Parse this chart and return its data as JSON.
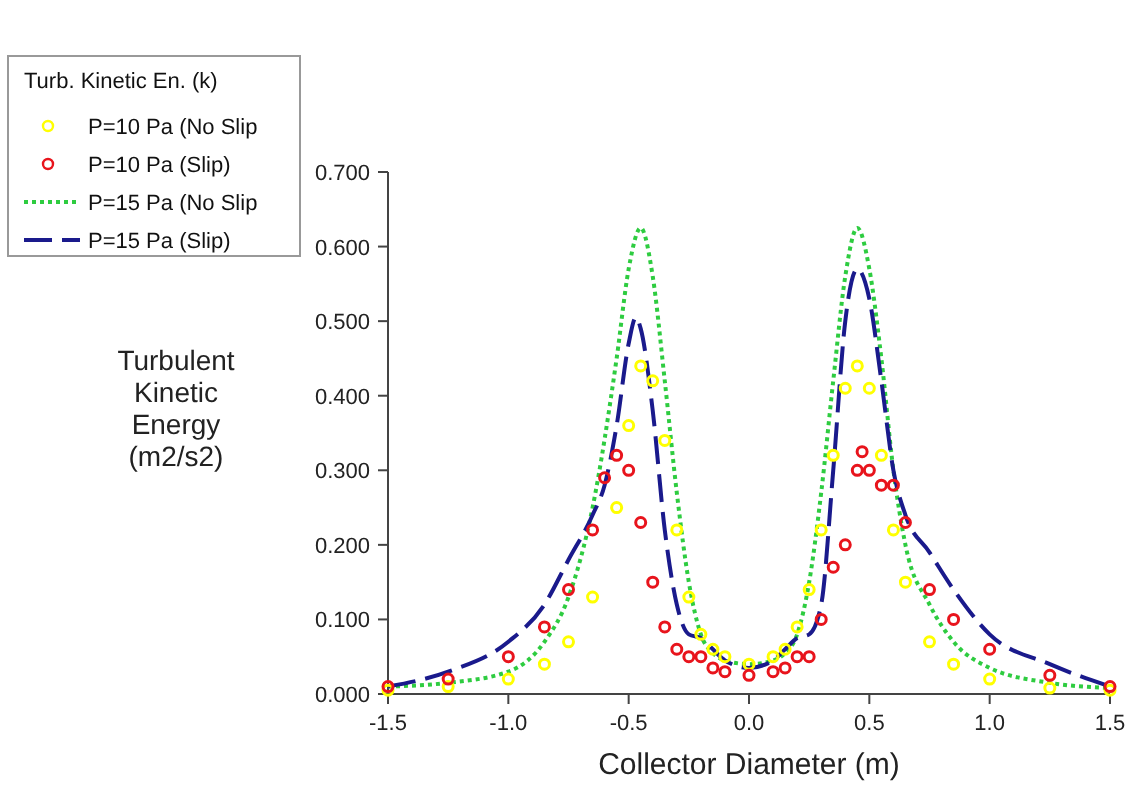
{
  "chart_data": {
    "type": "line",
    "xlabel": "Collector Diameter (m)",
    "ylabel": "Turbulent\nKinetic\nEnergy\n(m2/s2)",
    "legend_title": "Turb. Kinetic En. (k)",
    "legend": "top left",
    "xlim": [
      -1.5,
      1.5
    ],
    "xticks": [
      {
        "value": -1.5,
        "label": "-1.5"
      },
      {
        "value": -1,
        "label": "-1.0"
      },
      {
        "value": -0.5,
        "label": "-0.5"
      },
      {
        "value": 0,
        "label": "0.0"
      },
      {
        "value": 0.5,
        "label": "0.5"
      },
      {
        "value": 1,
        "label": "1.0"
      },
      {
        "value": 1.5,
        "label": "1.5"
      }
    ],
    "ylim": [
      0,
      0.7
    ],
    "yticks": [
      {
        "value": 0,
        "label": "0.000"
      },
      {
        "value": 0.1,
        "label": "0.100"
      },
      {
        "value": 0.2,
        "label": "0.200"
      },
      {
        "value": 0.3,
        "label": "0.300"
      },
      {
        "value": 0.4,
        "label": "0.400"
      },
      {
        "value": 0.5,
        "label": "0.500"
      },
      {
        "value": 0.6,
        "label": "0.600"
      },
      {
        "value": 0.7,
        "label": "0.700"
      }
    ],
    "series": [
      {
        "name": "P=10 Pa (No Slip",
        "type": "scatter",
        "marker": "circle",
        "color": "#ffff00",
        "x": [
          -1.5,
          -1.25,
          -1,
          -0.85,
          -0.75,
          -0.65,
          -0.55,
          -0.5,
          -0.45,
          -0.4,
          -0.35,
          -0.3,
          -0.25,
          -0.2,
          -0.15,
          -0.1,
          0,
          0.1,
          0.15,
          0.2,
          0.25,
          0.3,
          0.35,
          0.4,
          0.45,
          0.5,
          0.55,
          0.6,
          0.65,
          0.75,
          0.85,
          1,
          1.25,
          1.5
        ],
        "values": [
          0.005,
          0.01,
          0.02,
          0.04,
          0.07,
          0.13,
          0.25,
          0.36,
          0.44,
          0.42,
          0.34,
          0.22,
          0.13,
          0.08,
          0.06,
          0.05,
          0.04,
          0.05,
          0.06,
          0.09,
          0.14,
          0.22,
          0.32,
          0.41,
          0.44,
          0.41,
          0.32,
          0.22,
          0.15,
          0.07,
          0.04,
          0.02,
          0.008,
          0.005
        ]
      },
      {
        "name": "P=10 Pa (Slip)",
        "type": "scatter",
        "marker": "circle",
        "color": "#e8141c",
        "x": [
          -1.5,
          -1.25,
          -1,
          -0.85,
          -0.75,
          -0.65,
          -0.6,
          -0.55,
          -0.5,
          -0.45,
          -0.4,
          -0.35,
          -0.3,
          -0.25,
          -0.2,
          -0.15,
          -0.1,
          0,
          0.1,
          0.15,
          0.2,
          0.25,
          0.3,
          0.35,
          0.4,
          0.45,
          0.47,
          0.5,
          0.55,
          0.6,
          0.65,
          0.75,
          0.85,
          1,
          1.25,
          1.5
        ],
        "values": [
          0.01,
          0.02,
          0.05,
          0.09,
          0.14,
          0.22,
          0.29,
          0.32,
          0.3,
          0.23,
          0.15,
          0.09,
          0.06,
          0.05,
          0.05,
          0.035,
          0.03,
          0.025,
          0.03,
          0.035,
          0.05,
          0.05,
          0.1,
          0.17,
          0.2,
          0.3,
          0.325,
          0.3,
          0.28,
          0.28,
          0.23,
          0.14,
          0.1,
          0.06,
          0.025,
          0.01
        ]
      },
      {
        "name": "P=15 Pa (No Slip",
        "type": "line",
        "line_style": "dotted",
        "color": "#2ecc40",
        "x": [
          -1.5,
          -1.25,
          -1,
          -0.85,
          -0.75,
          -0.65,
          -0.55,
          -0.5,
          -0.45,
          -0.4,
          -0.35,
          -0.3,
          -0.25,
          -0.2,
          -0.15,
          -0.1,
          0,
          0.1,
          0.15,
          0.2,
          0.25,
          0.3,
          0.35,
          0.4,
          0.45,
          0.5,
          0.55,
          0.6,
          0.65,
          0.75,
          0.85,
          1,
          1.25,
          1.5
        ],
        "values": [
          0.01,
          0.015,
          0.03,
          0.07,
          0.13,
          0.25,
          0.45,
          0.57,
          0.625,
          0.56,
          0.42,
          0.27,
          0.15,
          0.08,
          0.055,
          0.045,
          0.04,
          0.045,
          0.055,
          0.08,
          0.15,
          0.27,
          0.42,
          0.56,
          0.625,
          0.57,
          0.45,
          0.3,
          0.2,
          0.12,
          0.07,
          0.035,
          0.015,
          0.008
        ]
      },
      {
        "name": "P=15 Pa (Slip)",
        "type": "line",
        "line_style": "dashed",
        "color": "#1a1a8c",
        "x": [
          -1.5,
          -1.25,
          -1,
          -0.85,
          -0.75,
          -0.65,
          -0.6,
          -0.55,
          -0.5,
          -0.47,
          -0.45,
          -0.4,
          -0.35,
          -0.3,
          -0.25,
          -0.2,
          -0.15,
          -0.1,
          0,
          0.1,
          0.15,
          0.2,
          0.25,
          0.3,
          0.35,
          0.4,
          0.45,
          0.5,
          0.55,
          0.6,
          0.65,
          0.75,
          0.85,
          1,
          1.25,
          1.5
        ],
        "values": [
          0.01,
          0.03,
          0.07,
          0.12,
          0.18,
          0.24,
          0.28,
          0.36,
          0.47,
          0.505,
          0.49,
          0.38,
          0.22,
          0.12,
          0.08,
          0.075,
          0.06,
          0.045,
          0.035,
          0.045,
          0.06,
          0.075,
          0.08,
          0.12,
          0.3,
          0.5,
          0.57,
          0.53,
          0.42,
          0.3,
          0.24,
          0.19,
          0.14,
          0.08,
          0.04,
          0.01
        ]
      }
    ]
  }
}
